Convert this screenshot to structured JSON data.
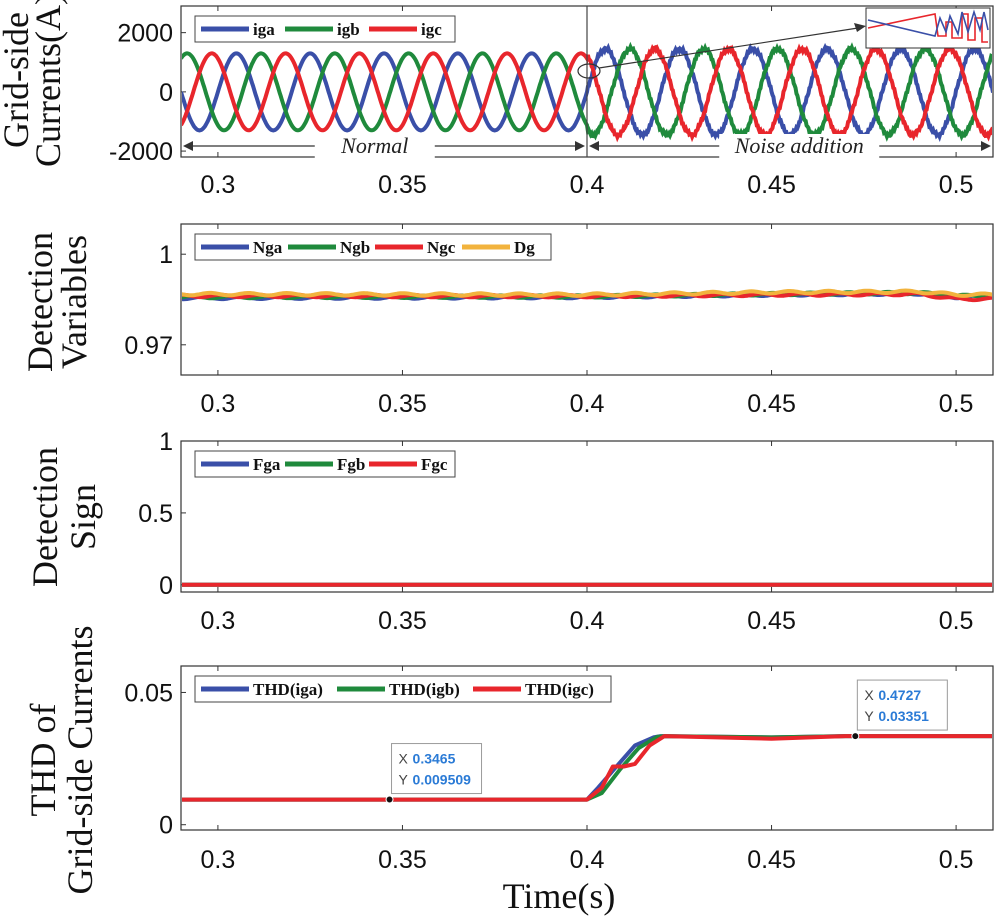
{
  "chart_data": [
    {
      "type": "line",
      "ylabel": [
        "Grid-side",
        "Currents(A)"
      ],
      "xlim": [
        0.29,
        0.51
      ],
      "ylim": [
        -2200,
        2900
      ],
      "xticks": [
        "0.3",
        "0.35",
        "0.4",
        "0.45",
        "0.5"
      ],
      "yticks": [
        "2000",
        "0",
        "-2000"
      ],
      "yticks_values": [
        2000,
        0,
        -2000
      ],
      "series": [
        {
          "name": "iga",
          "color": "#3a4fa8",
          "amplitude_before": 1300,
          "amplitude_after": 1450,
          "phase_deg": 0
        },
        {
          "name": "igb",
          "color": "#1f8a3c",
          "amplitude_before": 1300,
          "amplitude_after": 1450,
          "phase_deg": -120
        },
        {
          "name": "igc",
          "color": "#e8262c",
          "amplitude_before": 1300,
          "amplitude_after": 1450,
          "phase_deg": 120
        }
      ],
      "frequency_hz": 50,
      "event_time": 0.4,
      "annotations": {
        "normal": "Normal",
        "noise": "Noise addition"
      }
    },
    {
      "type": "line",
      "ylabel": [
        "Detection",
        "Variables"
      ],
      "xlim": [
        0.29,
        0.51
      ],
      "ylim": [
        0.96,
        1.01
      ],
      "xticks": [
        "0.3",
        "0.35",
        "0.4",
        "0.45",
        "0.5"
      ],
      "yticks": [
        "1",
        "0.97"
      ],
      "yticks_values": [
        1.0,
        0.97
      ],
      "series": [
        {
          "name": "Nga",
          "color": "#3a4fa8",
          "x": [
            0.29,
            0.4,
            0.45,
            0.49,
            0.5,
            0.51
          ],
          "y": [
            0.9855,
            0.9858,
            0.9866,
            0.987,
            0.9858,
            0.986
          ]
        },
        {
          "name": "Ngb",
          "color": "#1f8a3c",
          "x": [
            0.29,
            0.4,
            0.45,
            0.49,
            0.5,
            0.51
          ],
          "y": [
            0.9858,
            0.986,
            0.9868,
            0.9872,
            0.9862,
            0.9862
          ]
        },
        {
          "name": "Ngc",
          "color": "#e8262c",
          "x": [
            0.29,
            0.4,
            0.45,
            0.49,
            0.5,
            0.51
          ],
          "y": [
            0.9862,
            0.9861,
            0.9866,
            0.9868,
            0.9852,
            0.9852
          ]
        },
        {
          "name": "Dg",
          "color": "#f2b33d",
          "x": [
            0.29,
            0.4,
            0.45,
            0.49,
            0.5,
            0.51
          ],
          "y": [
            0.9868,
            0.9866,
            0.9874,
            0.9876,
            0.9866,
            0.9866
          ]
        }
      ]
    },
    {
      "type": "line",
      "ylabel": [
        "Detection",
        "Sign"
      ],
      "xlim": [
        0.29,
        0.51
      ],
      "ylim": [
        -0.05,
        1.0
      ],
      "xticks": [
        "0.3",
        "0.35",
        "0.4",
        "0.45",
        "0.5"
      ],
      "yticks": [
        "1",
        "0.5",
        "0"
      ],
      "yticks_values": [
        1,
        0.5,
        0
      ],
      "series": [
        {
          "name": "Fga",
          "color": "#3a4fa8",
          "x": [
            0.29,
            0.51
          ],
          "y": [
            0,
            0
          ]
        },
        {
          "name": "Fgb",
          "color": "#1f8a3c",
          "x": [
            0.29,
            0.51
          ],
          "y": [
            0,
            0
          ]
        },
        {
          "name": "Fgc",
          "color": "#e8262c",
          "x": [
            0.29,
            0.51
          ],
          "y": [
            0,
            0
          ]
        }
      ]
    },
    {
      "type": "line",
      "ylabel": [
        "THD of",
        "Grid-side Currents"
      ],
      "xlabel": "Time(s)",
      "xlim": [
        0.29,
        0.51
      ],
      "ylim": [
        -0.002,
        0.06
      ],
      "xticks": [
        "0.3",
        "0.35",
        "0.4",
        "0.45",
        "0.5"
      ],
      "yticks": [
        "0.05",
        "0"
      ],
      "yticks_values": [
        0.05,
        0
      ],
      "series": [
        {
          "name": "THD(iga)",
          "color": "#3a4fa8",
          "x": [
            0.29,
            0.35,
            0.4,
            0.403,
            0.408,
            0.413,
            0.418,
            0.42,
            0.45,
            0.47,
            0.51
          ],
          "y": [
            0.0095,
            0.0095,
            0.0095,
            0.014,
            0.022,
            0.03,
            0.033,
            0.0335,
            0.033,
            0.0335,
            0.0335
          ]
        },
        {
          "name": "THD(igb)",
          "color": "#1f8a3c",
          "x": [
            0.29,
            0.35,
            0.4,
            0.404,
            0.409,
            0.414,
            0.419,
            0.421,
            0.45,
            0.47,
            0.51
          ],
          "y": [
            0.0095,
            0.0095,
            0.0095,
            0.012,
            0.021,
            0.029,
            0.0332,
            0.0335,
            0.033,
            0.0335,
            0.0335
          ]
        },
        {
          "name": "THD(igc)",
          "color": "#e8262c",
          "x": [
            0.29,
            0.35,
            0.4,
            0.404,
            0.407,
            0.41,
            0.413,
            0.417,
            0.421,
            0.45,
            0.47,
            0.51
          ],
          "y": [
            0.0095,
            0.0095,
            0.0095,
            0.014,
            0.022,
            0.022,
            0.023,
            0.03,
            0.0335,
            0.0325,
            0.0335,
            0.0335
          ]
        }
      ],
      "datatips": [
        {
          "x_label": "X",
          "x_value": "0.3465",
          "y_label": "Y",
          "y_value": "0.009509",
          "x": 0.3465,
          "y": 0.009509
        },
        {
          "x_label": "X",
          "x_value": "0.4727",
          "y_label": "Y",
          "y_value": "0.03351",
          "x": 0.4727,
          "y": 0.03351
        }
      ]
    }
  ]
}
